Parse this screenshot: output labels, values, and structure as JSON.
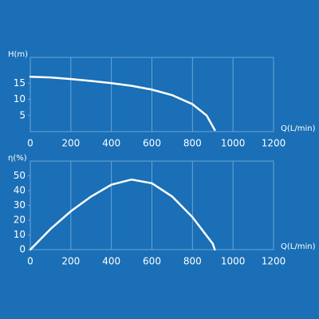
{
  "chart_data": [
    {
      "type": "line",
      "y_label": "H(m)",
      "x_label": "Q(L/min)",
      "x": [
        0,
        100,
        200,
        300,
        400,
        500,
        600,
        700,
        800,
        870,
        910
      ],
      "series": [
        {
          "color": "#ffffff",
          "values": [
            17,
            16.8,
            16.3,
            15.7,
            15,
            14.2,
            13,
            11.3,
            8.5,
            5,
            0.5
          ]
        }
      ],
      "xlim": [
        0,
        1200
      ],
      "xticks": [
        0,
        200,
        400,
        600,
        800,
        1000,
        1200
      ],
      "ylim": [
        0,
        23
      ],
      "yticks": [
        5,
        10,
        15
      ],
      "grid": true
    },
    {
      "type": "line",
      "y_label": "η(%)",
      "x_label": "Q(L/min)",
      "x": [
        0,
        100,
        200,
        300,
        400,
        500,
        600,
        700,
        800,
        900,
        910
      ],
      "series": [
        {
          "color": "#ffffff",
          "values": [
            0,
            14,
            26,
            36,
            44,
            47.5,
            45,
            36,
            22,
            4,
            0
          ]
        }
      ],
      "xlim": [
        0,
        1200
      ],
      "xticks": [
        0,
        200,
        400,
        600,
        800,
        1000,
        1200
      ],
      "ylim": [
        0,
        60
      ],
      "yticks": [
        0,
        10,
        20,
        30,
        40,
        50
      ],
      "grid": true
    }
  ]
}
